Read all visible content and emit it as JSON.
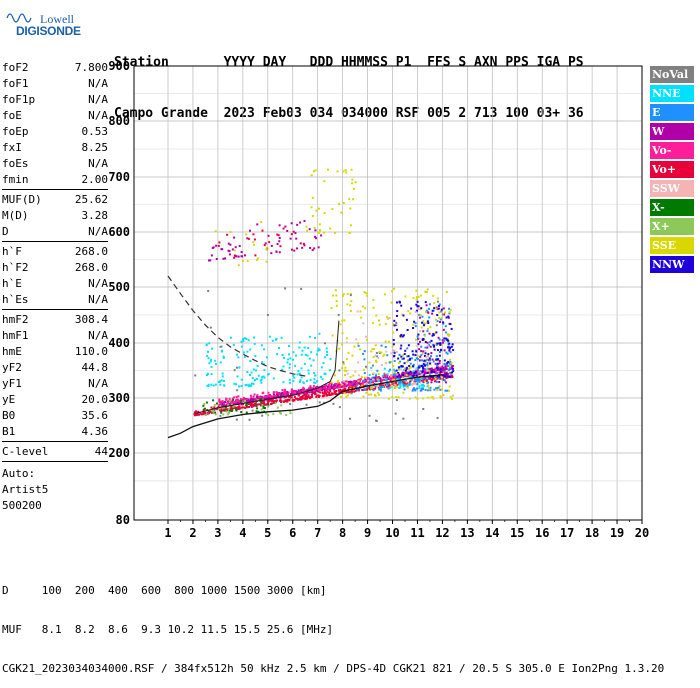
{
  "logo": {
    "line1": "Lowell",
    "line2": "DIGISONDE"
  },
  "header": {
    "line1": "Station       YYYY DAY   DDD HHMMSS P1  FFS S AXN PPS IGA PS",
    "line2": "Campo Grande  2023 Feb03 034 034000 RSF 005 2 713 100 03+ 36"
  },
  "params": {
    "group1": [
      {
        "label": "foF2",
        "value": "7.800"
      },
      {
        "label": "foF1",
        "value": "N/A"
      },
      {
        "label": "foF1p",
        "value": "N/A"
      },
      {
        "label": "foE",
        "value": "N/A"
      },
      {
        "label": "foEp",
        "value": "0.53"
      },
      {
        "label": "fxI",
        "value": "8.25"
      },
      {
        "label": "foEs",
        "value": "N/A"
      },
      {
        "label": "fmin",
        "value": "2.00"
      }
    ],
    "group2": [
      {
        "label": "MUF(D)",
        "value": "25.62"
      },
      {
        "label": "M(D)",
        "value": "3.28"
      },
      {
        "label": "D",
        "value": "N/A"
      }
    ],
    "group3": [
      {
        "label": "h`F",
        "value": "268.0"
      },
      {
        "label": "h`F2",
        "value": "268.0"
      },
      {
        "label": "h`E",
        "value": "N/A"
      },
      {
        "label": "h`Es",
        "value": "N/A"
      }
    ],
    "group4": [
      {
        "label": "hmF2",
        "value": "308.4"
      },
      {
        "label": "hmF1",
        "value": "N/A"
      },
      {
        "label": "hmE",
        "value": "110.0"
      },
      {
        "label": "yF2",
        "value": "44.8"
      },
      {
        "label": "yF1",
        "value": "N/A"
      },
      {
        "label": "yE",
        "value": "20.0"
      },
      {
        "label": "B0",
        "value": "35.6"
      },
      {
        "label": "B1",
        "value": "4.36"
      }
    ],
    "group5": [
      {
        "label": "C-level",
        "value": "44"
      }
    ],
    "auto": [
      "Auto:",
      "Artist5",
      "500200"
    ]
  },
  "legend": [
    {
      "label": "NoVal",
      "bg": "#808080",
      "fg": "#ffffff"
    },
    {
      "label": "NNE",
      "bg": "#00e0ff",
      "fg": "#ffffff"
    },
    {
      "label": "E",
      "bg": "#1e90ff",
      "fg": "#ffffff"
    },
    {
      "label": "W",
      "bg": "#b000a8",
      "fg": "#ffffff"
    },
    {
      "label": "Vo-",
      "bg": "#ff1e9a",
      "fg": "#ffffff"
    },
    {
      "label": "Vo+",
      "bg": "#e8003a",
      "fg": "#ffffff"
    },
    {
      "label": "SSW",
      "bg": "#f4b4b4",
      "fg": "#ffffff"
    },
    {
      "label": "X-",
      "bg": "#007a00",
      "fg": "#ffffff"
    },
    {
      "label": "X+",
      "bg": "#8cc85a",
      "fg": "#ffffff"
    },
    {
      "label": "SSE",
      "bg": "#d8d800",
      "fg": "#ffffff"
    },
    {
      "label": "NNW",
      "bg": "#2000d8",
      "fg": "#ffffff"
    }
  ],
  "footer": {
    "line1": "D     100  200  400  600  800 1000 1500 3000 [km]",
    "line2": "MUF   8.1  8.2  8.6  9.3 10.2 11.5 15.5 25.6 [MHz]",
    "line3": "CGK21_2023034034000.RSF / 384fx512h 50 kHz 2.5 km / DPS-4D CGK21 821 / 20.5 S 305.0 E Ion2Png 1.3.20"
  },
  "chart_data": {
    "type": "scatter",
    "xlim": [
      1,
      20
    ],
    "ylim": [
      80,
      900
    ],
    "y_scale": "log",
    "xticks": [
      "1",
      "2",
      "3",
      "4",
      "5",
      "6",
      "7",
      "8",
      "9",
      "10",
      "11",
      "12",
      "13",
      "14",
      "15",
      "16",
      "17",
      "18",
      "19",
      "20"
    ],
    "yticks": [
      "900",
      "800",
      "700",
      "600",
      "500",
      "400",
      "300",
      "200",
      "80"
    ],
    "grid": true,
    "series": [
      {
        "name": "Vo+",
        "color": "#e8003a",
        "clusters": [
          {
            "x": [
              2.0,
              12.4
            ],
            "y": [
              270,
              350
            ],
            "n": 500,
            "slope": 70
          },
          {
            "x": [
              2.6,
              7.0
            ],
            "y": [
              550,
              620
            ],
            "n": 25,
            "slope": 20
          }
        ]
      },
      {
        "name": "W",
        "color": "#b000a8",
        "clusters": [
          {
            "x": [
              3.0,
              12.4
            ],
            "y": [
              285,
              360
            ],
            "n": 600,
            "slope": 70
          },
          {
            "x": [
              2.6,
              7.4
            ],
            "y": [
              550,
              635
            ],
            "n": 60,
            "slope": 25
          },
          {
            "x": [
              11.0,
              12.3
            ],
            "y": [
              330,
              470
            ],
            "n": 60,
            "slope": 0
          }
        ]
      },
      {
        "name": "Vo-",
        "color": "#ff1e9a",
        "clusters": [
          {
            "x": [
              3.0,
              12.2
            ],
            "y": [
              290,
              360
            ],
            "n": 220,
            "slope": 60
          }
        ]
      },
      {
        "name": "NNE",
        "color": "#00e0ff",
        "clusters": [
          {
            "x": [
              2.5,
              7.5
            ],
            "y": [
              320,
              420
            ],
            "n": 180,
            "slope": 10
          },
          {
            "x": [
              9.0,
              11.5
            ],
            "y": [
              320,
              360
            ],
            "n": 80,
            "slope": 0
          }
        ]
      },
      {
        "name": "E",
        "color": "#1e90ff",
        "clusters": [
          {
            "x": [
              8.5,
              12.3
            ],
            "y": [
              315,
              400
            ],
            "n": 120,
            "slope": 0
          },
          {
            "x": [
              10.8,
              12.3
            ],
            "y": [
              360,
              480
            ],
            "n": 50,
            "slope": 0
          }
        ]
      },
      {
        "name": "SSE",
        "color": "#d8d800",
        "clusters": [
          {
            "x": [
              7.5,
              12.4
            ],
            "y": [
              300,
              500
            ],
            "n": 220,
            "slope": 0
          },
          {
            "x": [
              6.5,
              8.5
            ],
            "y": [
              600,
              720
            ],
            "n": 40,
            "slope": 0
          },
          {
            "x": [
              2.5,
              5.0
            ],
            "y": [
              540,
              620
            ],
            "n": 15,
            "slope": 0
          }
        ]
      },
      {
        "name": "NNW",
        "color": "#2000d8",
        "clusters": [
          {
            "x": [
              10.0,
              12.4
            ],
            "y": [
              340,
              480
            ],
            "n": 170,
            "slope": 0
          }
        ]
      },
      {
        "name": "SSW",
        "color": "#f4b4b4",
        "clusters": [
          {
            "x": [
              8.0,
              11.5
            ],
            "y": [
              320,
              470
            ],
            "n": 60,
            "slope": 0
          }
        ]
      },
      {
        "name": "X-",
        "color": "#007a00",
        "clusters": [
          {
            "x": [
              2.3,
              5.0
            ],
            "y": [
              275,
              300
            ],
            "n": 40,
            "slope": 0
          }
        ]
      },
      {
        "name": "X+",
        "color": "#8cc85a",
        "clusters": [
          {
            "x": [
              2.3,
              6.0
            ],
            "y": [
              270,
              300
            ],
            "n": 40,
            "slope": 0
          }
        ]
      },
      {
        "name": "NoVal",
        "color": "#808080",
        "clusters": [
          {
            "x": [
              2.0,
              12.0
            ],
            "y": [
              260,
              500
            ],
            "n": 50,
            "slope": 0
          }
        ]
      }
    ],
    "profile_line": {
      "x": [
        1.0,
        1.5,
        2.0,
        3.0,
        4.0,
        5.0,
        6.0,
        7.0,
        7.5,
        8.0,
        9.0,
        10.0,
        11.0,
        12.0
      ],
      "y": [
        228,
        236,
        248,
        262,
        270,
        275,
        278,
        285,
        295,
        312,
        322,
        330,
        338,
        342
      ]
    },
    "trace_line": {
      "x": [
        2.1,
        3.0,
        4.0,
        5.0,
        6.0,
        7.0,
        7.5,
        7.7,
        7.85
      ],
      "y": [
        272,
        282,
        290,
        298,
        305,
        318,
        330,
        350,
        440
      ]
    },
    "dashed_curve": {
      "x": [
        1.0,
        1.5,
        2.0,
        2.5,
        3.0,
        3.5,
        4.0,
        4.5,
        5.0,
        5.5,
        6.0,
        6.5
      ],
      "y": [
        520,
        488,
        458,
        432,
        410,
        393,
        380,
        368,
        357,
        350,
        344,
        340
      ]
    }
  }
}
